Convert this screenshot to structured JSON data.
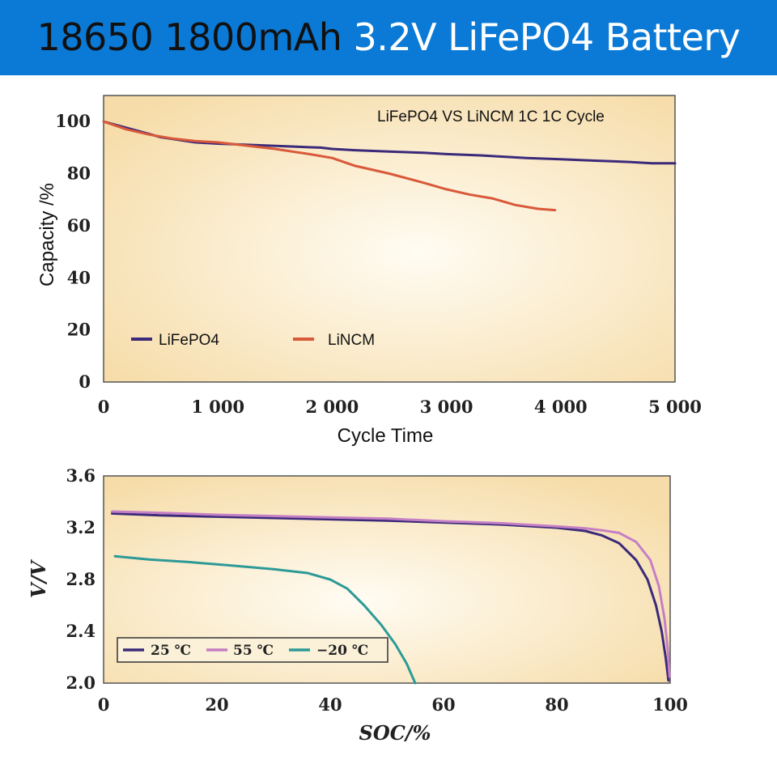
{
  "header": {
    "title_part1": "18650  1800mAh ",
    "title_part2": "3.2V LiFePO4 Battery",
    "bg_color": "#0b7ad6"
  },
  "chart_data": [
    {
      "type": "line",
      "title": "LiFePO4 VS LiNCM 1C 1C Cycle",
      "xlabel": "Cycle Time",
      "ylabel": "Capacity /%",
      "xlim": [
        0,
        5000
      ],
      "ylim": [
        0,
        110
      ],
      "xticks": [
        "0",
        "1 000",
        "2 000",
        "3 000",
        "4 000",
        "5 000"
      ],
      "yticks": [
        "0",
        "20",
        "40",
        "60",
        "80",
        "100"
      ],
      "legend_position": "bottom-left",
      "series": [
        {
          "name": "LiFePO4",
          "color": "#3b2a7a",
          "x": [
            0,
            250,
            500,
            800,
            1000,
            1300,
            1600,
            1900,
            2000,
            2200,
            2500,
            2800,
            3000,
            3300,
            3500,
            3700,
            4000,
            4300,
            4600,
            4800,
            5000
          ],
          "y": [
            100,
            97,
            94,
            92,
            91.5,
            91,
            90.5,
            90,
            89.5,
            89,
            88.5,
            88,
            87.5,
            87,
            86.5,
            86,
            85.5,
            85,
            84.5,
            84,
            84
          ]
        },
        {
          "name": "LiNCM",
          "color": "#d9593a",
          "x": [
            0,
            200,
            400,
            600,
            800,
            1000,
            1200,
            1500,
            1800,
            2000,
            2200,
            2500,
            2800,
            3000,
            3200,
            3400,
            3600,
            3800,
            3950
          ],
          "y": [
            100,
            97,
            95,
            93.5,
            92.5,
            92,
            91,
            89.5,
            87.5,
            86,
            83,
            80,
            76.5,
            74,
            72,
            70.5,
            68,
            66.5,
            66
          ]
        }
      ]
    },
    {
      "type": "line",
      "title": "",
      "xlabel": "SOC/%",
      "ylabel": "V/V",
      "xlim": [
        0,
        100
      ],
      "ylim": [
        2.0,
        3.6
      ],
      "xticks": [
        "0",
        "20",
        "40",
        "60",
        "80",
        "100"
      ],
      "yticks": [
        "2.0",
        "2.4",
        "2.8",
        "3.2",
        "3.6"
      ],
      "legend_position": "bottom-left",
      "series": [
        {
          "name": "25 ℃",
          "color": "#3b2a7a",
          "x": [
            1.5,
            10,
            20,
            30,
            40,
            50,
            60,
            70,
            80,
            85,
            88,
            91,
            94,
            96,
            97.5,
            98.5,
            99.2,
            99.7
          ],
          "y": [
            3.31,
            3.295,
            3.285,
            3.275,
            3.265,
            3.255,
            3.24,
            3.225,
            3.2,
            3.175,
            3.14,
            3.08,
            2.95,
            2.8,
            2.6,
            2.4,
            2.2,
            2.02
          ]
        },
        {
          "name": "55 ℃",
          "color": "#c57fc4",
          "x": [
            1.5,
            10,
            20,
            30,
            40,
            50,
            60,
            70,
            80,
            85,
            88,
            91,
            94,
            96.5,
            98,
            99,
            99.6,
            99.9
          ],
          "y": [
            3.325,
            3.315,
            3.3,
            3.29,
            3.28,
            3.27,
            3.25,
            3.235,
            3.21,
            3.195,
            3.18,
            3.16,
            3.09,
            2.95,
            2.75,
            2.5,
            2.25,
            2.05
          ]
        },
        {
          "name": "−20 ℃",
          "color": "#2d9a96",
          "x": [
            2,
            8,
            15,
            22,
            30,
            36,
            40,
            43,
            46,
            49,
            51.5,
            53.5,
            55
          ],
          "y": [
            2.98,
            2.955,
            2.935,
            2.91,
            2.88,
            2.85,
            2.8,
            2.73,
            2.6,
            2.45,
            2.3,
            2.15,
            2.0
          ]
        }
      ]
    }
  ]
}
